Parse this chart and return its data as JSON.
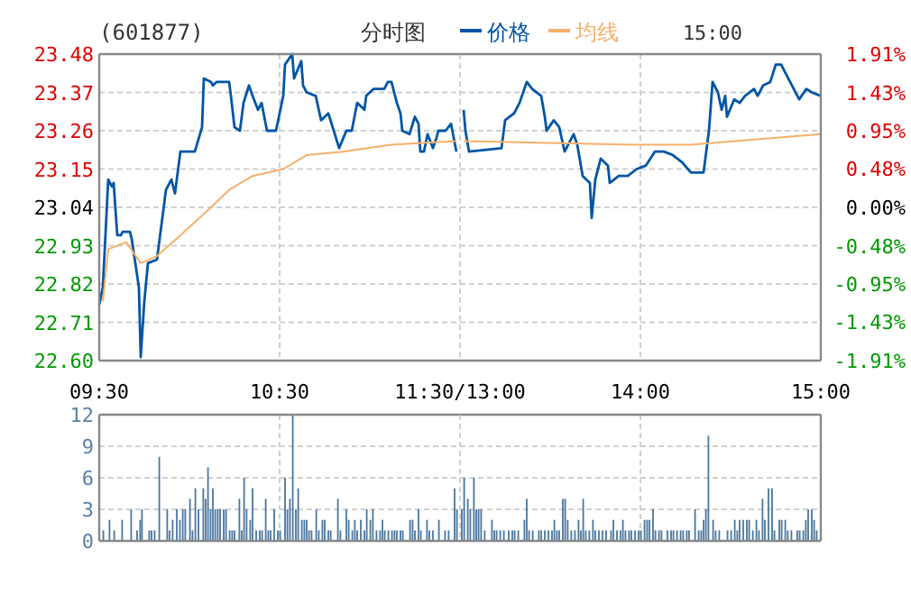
{
  "chart_data": [
    {
      "type": "line",
      "title": "(601877)",
      "subtitle": "分时图",
      "annotations": [
        "15:00"
      ],
      "legend": "top",
      "grid": true,
      "line_style": "solid",
      "marker": "none",
      "xlim": [
        9.5,
        11.5
      ],
      "xticks": [
        {
          "value": 9.5,
          "label": "09:30"
        },
        {
          "value": 10.5,
          "label": "10:30"
        },
        {
          "value": 11.5,
          "label": "11:30/13:00"
        }
      ],
      "ylim": [
        22.6,
        23.48
      ],
      "yticks": [
        {
          "value": 22.6,
          "label": "22.60"
        },
        22.71,
        22.82,
        22.93,
        23.04,
        23.15,
        23.26,
        23.37,
        23.48
      ],
      "series": [
        {
          "name": "价格",
          "color": "#0055a5",
          "x": [
            9.5,
            9.52,
            9.55,
            9.57,
            9.58,
            9.6,
            9.62,
            9.63,
            9.67,
            9.68,
            9.7,
            9.72,
            9.73,
            9.75,
            9.77,
            9.82,
            9.85,
            9.87,
            9.9,
            9.92,
            9.95,
            9.98,
            10.03,
            10.07,
            10.08,
            10.12,
            10.13,
            10.15,
            10.22,
            10.23,
            10.25,
            10.28,
            10.3,
            10.33,
            10.35,
            10.38,
            10.4,
            10.43,
            10.48,
            10.52,
            10.53,
            10.57,
            10.58,
            10.62,
            10.63,
            10.65,
            10.7,
            10.73,
            10.77,
            10.8,
            10.83,
            10.87,
            10.9,
            10.93,
            10.97,
            10.98,
            11.02,
            11.08,
            11.1,
            11.12,
            11.15,
            11.17,
            11.18,
            11.22,
            11.25,
            11.27,
            11.28,
            11.3,
            11.32,
            11.35,
            11.37,
            11.38,
            11.42,
            11.45,
            11.48
          ],
          "values": [
            22.76,
            22.81,
            23.12,
            23.1,
            23.11,
            22.96,
            22.96,
            22.97,
            22.97,
            22.95,
            22.88,
            22.81,
            22.61,
            22.77,
            22.88,
            22.89,
            23.01,
            23.09,
            23.12,
            23.08,
            23.2,
            23.2,
            23.2,
            23.27,
            23.41,
            23.4,
            23.39,
            23.4,
            23.4,
            23.36,
            23.27,
            23.26,
            23.34,
            23.39,
            23.36,
            23.32,
            23.34,
            23.26,
            23.26,
            23.36,
            23.45,
            23.48,
            23.41,
            23.46,
            23.39,
            23.37,
            23.36,
            23.29,
            23.31,
            23.26,
            23.21,
            23.26,
            23.26,
            23.34,
            23.32,
            23.36,
            23.38,
            23.38,
            23.4,
            23.4,
            23.34,
            23.31,
            23.26,
            23.25,
            23.3,
            23.28,
            23.2,
            23.2,
            23.25,
            23.21,
            23.24,
            23.26,
            23.26,
            23.28,
            23.2
          ]
        },
        {
          "name": "均线",
          "color": "#f5b06a",
          "x": [
            9.52,
            9.55,
            9.65,
            9.73,
            9.82,
            9.95,
            10.12,
            10.22,
            10.35,
            10.52,
            10.65,
            10.85,
            11.12,
            11.48
          ],
          "values": [
            22.77,
            22.92,
            22.94,
            22.88,
            22.9,
            22.96,
            23.04,
            23.09,
            23.13,
            23.15,
            23.19,
            23.2,
            23.22,
            23.23
          ]
        }
      ]
    },
    {
      "type": "line",
      "grid": true,
      "line_style": "solid",
      "marker": "none",
      "tick_labels": "x",
      "xlim": [
        13,
        15
      ],
      "xticks": [
        {
          "value": 13,
          "label": null
        },
        {
          "value": 14,
          "label": "14:00"
        },
        {
          "value": 15,
          "label": "15:00"
        }
      ],
      "ylim": [
        22.6,
        23.48
      ],
      "yticks": [
        22.6,
        22.71,
        22.82,
        22.93,
        23.04,
        23.15,
        23.26,
        23.37,
        23.48
      ],
      "y2lim": [
        -1.91,
        1.91
      ],
      "y2ticks": [
        {
          "value": -1.91,
          "label": "-1.91%"
        },
        {
          "value": -1.43,
          "label": "-1.43%"
        },
        {
          "value": -0.95,
          "label": "-0.95%"
        },
        {
          "value": -0.48,
          "label": "-0.48%"
        },
        {
          "value": 0,
          "label": "0.00%"
        },
        {
          "value": 0.48,
          "label": "0.48%"
        },
        {
          "value": 0.95,
          "label": "0.95%"
        },
        {
          "value": 1.43,
          "label": "1.43%"
        },
        {
          "value": 1.91,
          "label": "1.91%"
        }
      ],
      "series": [
        {
          "color": "#0055a5",
          "x": [
            13.02,
            13.03,
            13.05,
            13.23,
            13.25,
            13.3,
            13.33,
            13.37,
            13.4,
            13.45,
            13.47,
            13.48,
            13.52,
            13.55,
            13.58,
            13.62,
            13.63,
            13.65,
            13.68,
            13.72,
            13.73,
            13.75,
            13.78,
            13.82,
            13.83,
            13.88,
            13.93,
            13.98,
            14.03,
            14.08,
            14.13,
            14.18,
            14.23,
            14.28,
            14.35,
            14.38,
            14.4,
            14.43,
            14.45,
            14.47,
            14.48,
            14.52,
            14.55,
            14.58,
            14.63,
            14.65,
            14.68,
            14.72,
            14.75,
            14.78,
            14.82,
            14.85,
            14.88,
            14.92,
            14.95,
            15
          ],
          "values": [
            23.32,
            23.26,
            23.2,
            23.21,
            23.29,
            23.31,
            23.34,
            23.4,
            23.38,
            23.36,
            23.3,
            23.26,
            23.29,
            23.27,
            23.2,
            23.24,
            23.25,
            23.22,
            23.13,
            23.11,
            23.01,
            23.12,
            23.18,
            23.16,
            23.11,
            23.13,
            23.13,
            23.15,
            23.16,
            23.2,
            23.2,
            23.19,
            23.17,
            23.14,
            23.14,
            23.26,
            23.4,
            23.37,
            23.32,
            23.36,
            23.3,
            23.35,
            23.34,
            23.36,
            23.38,
            23.36,
            23.39,
            23.4,
            23.45,
            23.45,
            23.41,
            23.38,
            23.35,
            23.38,
            23.37,
            23.36
          ]
        },
        {
          "color": "#f5b06a",
          "x": [
            13.02,
            13.95,
            14.28,
            15
          ],
          "values": [
            23.23,
            23.22,
            23.22,
            23.25
          ]
        }
      ]
    },
    {
      "type": "bar",
      "grid": true,
      "tick_labels": "y",
      "xlim": [
        9.5,
        11.5
      ],
      "xticks": [
        9.5,
        10.5,
        11.5
      ],
      "ylim": [
        0,
        12
      ],
      "yticks": [
        0,
        3,
        6,
        9,
        12
      ],
      "series": [
        {
          "color": "#4a76a0",
          "x": [
            9.523,
            9.557,
            9.583,
            9.627,
            9.677,
            9.71,
            9.727,
            9.737,
            9.777,
            9.79,
            9.807,
            9.833,
            9.877,
            9.89,
            9.907,
            9.93,
            9.947,
            9.963,
            9.977,
            10.003,
            10.017,
            10.033,
            10.05,
            10.077,
            10.09,
            10.103,
            10.117,
            10.13,
            10.143,
            10.157,
            10.17,
            10.19,
            10.203,
            10.223,
            10.237,
            10.25,
            10.277,
            10.29,
            10.303,
            10.317,
            10.337,
            10.35,
            10.37,
            10.39,
            10.403,
            10.423,
            10.437,
            10.45,
            10.47,
            10.49,
            10.503,
            10.53,
            10.543,
            10.557,
            10.573,
            10.59,
            10.603,
            10.623,
            10.637,
            10.65,
            10.663,
            10.677,
            10.703,
            10.717,
            10.737,
            10.75,
            10.77,
            10.783,
            10.823,
            10.837,
            10.87,
            10.883,
            10.903,
            10.917,
            10.93,
            10.95,
            10.97,
            10.983,
            11.003,
            11.017,
            11.037,
            11.057,
            11.07,
            11.083,
            11.103,
            11.123,
            11.137,
            11.15,
            11.17,
            11.183,
            11.223,
            11.237,
            11.25,
            11.27,
            11.283,
            11.317,
            11.33,
            11.35,
            11.383,
            11.417,
            11.437,
            11.47,
            11.483
          ],
          "values": [
            1,
            2,
            1,
            2,
            3,
            1,
            2,
            3,
            1,
            1,
            1,
            8,
            3,
            1,
            2,
            3,
            2,
            3,
            3,
            4,
            1,
            5,
            3,
            5,
            4,
            7,
            3,
            5,
            3,
            3,
            3,
            3,
            3,
            1,
            1,
            1,
            4,
            1,
            6,
            3,
            2,
            5,
            1,
            1,
            1,
            4,
            1,
            1,
            3,
            1,
            1,
            6,
            3,
            4,
            12,
            3,
            5,
            2,
            2,
            2,
            1,
            1,
            3,
            1,
            2,
            2,
            1,
            1,
            4,
            1,
            3,
            2,
            1,
            2,
            1,
            2,
            1,
            3,
            2,
            3,
            1,
            1,
            2,
            1,
            1,
            1,
            1,
            1,
            1,
            1,
            2,
            2,
            1,
            3,
            1,
            2,
            1,
            1,
            2,
            1,
            1,
            5,
            3
          ]
        }
      ]
    },
    {
      "type": "bar",
      "grid": true,
      "tick_labels": false,
      "xlim": [
        13,
        15
      ],
      "xticks": [
        13,
        14,
        15
      ],
      "ylim": [
        0,
        12
      ],
      "yticks": [
        0,
        3,
        6,
        9,
        12
      ],
      "series": [
        {
          "color": "#4a76a0",
          "x": [
            13.01,
            13.023,
            13.043,
            13.057,
            13.077,
            13.09,
            13.103,
            13.117,
            13.137,
            13.177,
            13.19,
            13.203,
            13.223,
            13.243,
            13.27,
            13.29,
            13.303,
            13.323,
            13.357,
            13.37,
            13.383,
            13.403,
            13.437,
            13.45,
            13.47,
            13.49,
            13.51,
            13.523,
            13.537,
            13.55,
            13.57,
            13.583,
            13.597,
            13.617,
            13.637,
            13.657,
            13.67,
            13.683,
            13.697,
            13.717,
            13.737,
            13.75,
            13.77,
            13.79,
            13.81,
            13.837,
            13.85,
            13.87,
            13.89,
            13.903,
            13.917,
            13.937,
            13.95,
            13.97,
            13.99,
            14.003,
            14.023,
            14.037,
            14.05,
            14.07,
            14.083,
            14.103,
            14.117,
            14.15,
            14.17,
            14.183,
            14.203,
            14.223,
            14.237,
            14.257,
            14.27,
            14.303,
            14.323,
            14.337,
            14.35,
            14.363,
            14.377,
            14.403,
            14.417,
            14.437,
            14.483,
            14.503,
            14.523,
            14.537,
            14.55,
            14.57,
            14.59,
            14.603,
            14.623,
            14.643,
            14.657,
            14.677,
            14.69,
            14.71,
            14.73,
            14.743,
            14.77,
            14.783,
            14.803,
            14.817,
            14.837,
            14.87,
            14.883,
            14.903,
            14.917,
            14.93,
            14.95,
            14.963,
            14.977
          ],
          "values": [
            3,
            6,
            4,
            3,
            6,
            3,
            3,
            3,
            1,
            2,
            1,
            1,
            1,
            1,
            1,
            1,
            1,
            1,
            2,
            4,
            1,
            1,
            1,
            1,
            1,
            1,
            1,
            2,
            1,
            1,
            4,
            4,
            2,
            1,
            1,
            2,
            1,
            4,
            1,
            1,
            2,
            1,
            1,
            1,
            1,
            1,
            2,
            1,
            1,
            2,
            1,
            1,
            1,
            1,
            1,
            1,
            2,
            2,
            2,
            3,
            1,
            1,
            1,
            1,
            1,
            1,
            1,
            1,
            1,
            1,
            1,
            3,
            1,
            1,
            2,
            3,
            10,
            2,
            1,
            1,
            1,
            1,
            2,
            1,
            2,
            2,
            2,
            2,
            1,
            2,
            1,
            4,
            2,
            5,
            5,
            1,
            2,
            2,
            2,
            1,
            1,
            1,
            1,
            1,
            2,
            3,
            3,
            2,
            1
          ]
        }
      ]
    }
  ]
}
